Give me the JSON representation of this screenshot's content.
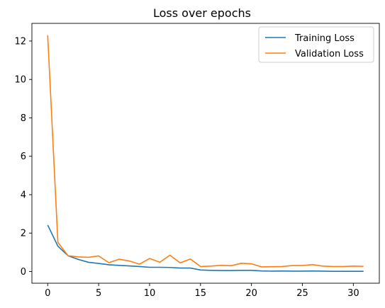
{
  "chart_data": {
    "type": "line",
    "title": "Loss over epochs",
    "xlabel": "",
    "ylabel": "",
    "xlim": [
      -1.55,
      32.55
    ],
    "ylim": [
      -0.61,
      12.92
    ],
    "xticks": [
      0,
      5,
      10,
      15,
      20,
      25,
      30
    ],
    "yticks": [
      0,
      2,
      4,
      6,
      8,
      10,
      12
    ],
    "grid": false,
    "legend_position": "top-right",
    "x": [
      0,
      1,
      2,
      3,
      4,
      5,
      6,
      7,
      8,
      9,
      10,
      11,
      12,
      13,
      14,
      15,
      16,
      17,
      18,
      19,
      20,
      21,
      22,
      23,
      24,
      25,
      26,
      27,
      28,
      29,
      30,
      31
    ],
    "series": [
      {
        "name": "Training Loss",
        "color": "#1f77b4",
        "values": [
          2.42,
          1.32,
          0.82,
          0.63,
          0.48,
          0.42,
          0.35,
          0.32,
          0.29,
          0.26,
          0.22,
          0.22,
          0.21,
          0.18,
          0.18,
          0.08,
          0.06,
          0.05,
          0.05,
          0.06,
          0.06,
          0.03,
          0.02,
          0.03,
          0.02,
          0.02,
          0.03,
          0.02,
          0.01,
          0.01,
          0.01,
          0.01
        ]
      },
      {
        "name": "Validation Loss",
        "color": "#ff7f0e",
        "values": [
          12.3,
          1.52,
          0.82,
          0.76,
          0.74,
          0.81,
          0.46,
          0.64,
          0.55,
          0.38,
          0.68,
          0.48,
          0.85,
          0.45,
          0.65,
          0.26,
          0.28,
          0.32,
          0.3,
          0.43,
          0.4,
          0.24,
          0.25,
          0.26,
          0.31,
          0.31,
          0.36,
          0.28,
          0.26,
          0.26,
          0.28,
          0.27
        ]
      }
    ]
  }
}
